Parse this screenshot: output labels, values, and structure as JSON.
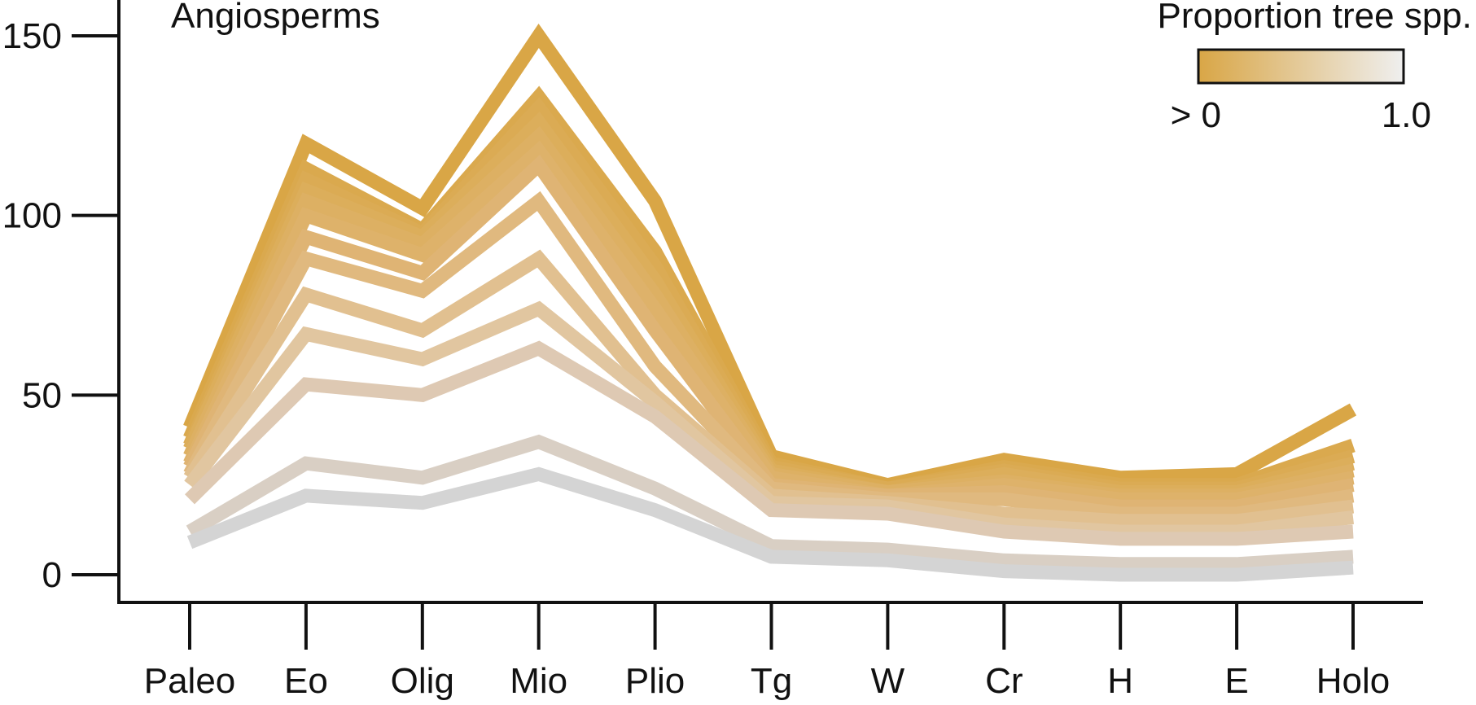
{
  "chart_data": {
    "type": "line",
    "title": "Angiosperms",
    "xlabel": "",
    "ylabel": "",
    "categories": [
      "Paleo",
      "Eo",
      "Olig",
      "Mio",
      "Plio",
      "Tg",
      "W",
      "Cr",
      "H",
      "E",
      "Holo"
    ],
    "yticks": [
      "0",
      "50",
      "100",
      "150"
    ],
    "ytick_values": [
      0,
      50,
      100,
      150
    ],
    "ylim": [
      -8,
      160
    ],
    "grid": false,
    "legend": {
      "title": "Proportion tree spp.",
      "low_label": "> 0",
      "high_label": "1.0",
      "placement": "top-right",
      "colors": [
        "#d9a646",
        "#efefef"
      ]
    },
    "series": [
      {
        "values": [
          41,
          120,
          102,
          150,
          104,
          33,
          25,
          32,
          27,
          28,
          46
        ],
        "color": "#d9a646"
      },
      {
        "values": [
          38,
          113,
          96,
          133,
          90,
          31,
          24,
          30,
          25,
          25,
          36
        ],
        "color": "#daa94e"
      },
      {
        "values": [
          36,
          110,
          95,
          130,
          86,
          30,
          24,
          29,
          24,
          24,
          33
        ],
        "color": "#dbab54"
      },
      {
        "values": [
          35,
          107,
          94,
          126,
          82,
          29,
          23,
          28,
          23,
          23,
          31
        ],
        "color": "#dcae5b"
      },
      {
        "values": [
          33,
          104,
          92,
          122,
          78,
          28,
          23,
          26,
          22,
          22,
          29
        ],
        "color": "#ddb063"
      },
      {
        "values": [
          31,
          100,
          89,
          118,
          74,
          27,
          22,
          25,
          21,
          21,
          27
        ],
        "color": "#deb26a"
      },
      {
        "values": [
          30,
          94,
          84,
          114,
          68,
          25,
          22,
          23,
          19,
          19,
          25
        ],
        "color": "#dfb474"
      },
      {
        "values": [
          28,
          88,
          79,
          104,
          58,
          24,
          21,
          21,
          17,
          17,
          22
        ],
        "color": "#e0b97f"
      },
      {
        "values": [
          27,
          78,
          68,
          88,
          50,
          22,
          20,
          17,
          15,
          15,
          19
        ],
        "color": "#e1c090"
      },
      {
        "values": [
          25,
          67,
          60,
          74,
          48,
          20,
          19,
          14,
          12,
          12,
          16
        ],
        "color": "#e1c6a0"
      },
      {
        "values": [
          21,
          53,
          50,
          63,
          44,
          18,
          17,
          12,
          10,
          10,
          12
        ],
        "color": "#dec9b3"
      },
      {
        "values": [
          12,
          31,
          27,
          37,
          24,
          8,
          7,
          4,
          3,
          3,
          5
        ],
        "color": "#d9cfc4"
      },
      {
        "values": [
          9,
          22,
          20,
          28,
          18,
          5,
          4,
          1,
          0,
          0,
          2
        ],
        "color": "#d4d4d4"
      }
    ]
  }
}
